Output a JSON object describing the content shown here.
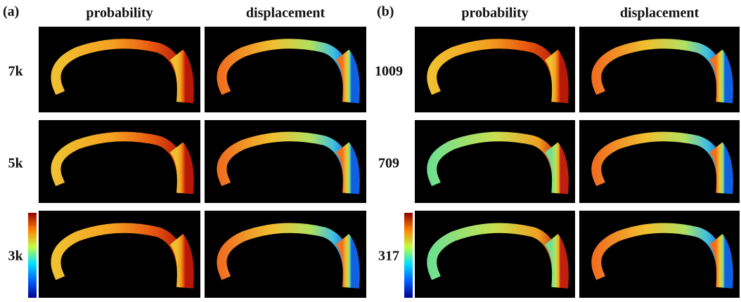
{
  "panels": [
    {
      "label": "(a)",
      "columns": [
        "probability",
        "displacement"
      ],
      "rows": [
        "7k",
        "5k",
        "3k"
      ]
    },
    {
      "label": "(b)",
      "columns": [
        "probability",
        "displacement"
      ],
      "rows": [
        "1009",
        "709",
        "317"
      ]
    }
  ]
}
